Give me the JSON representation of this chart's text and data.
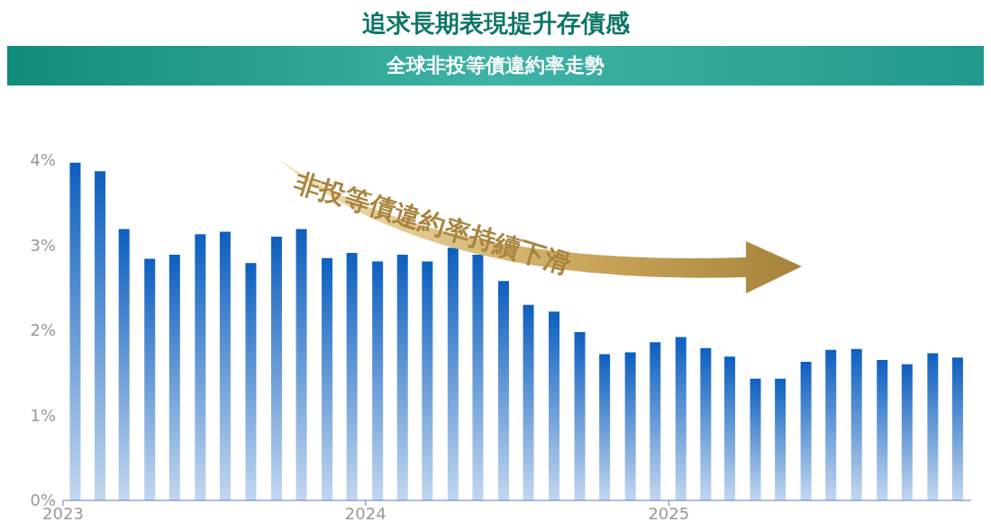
{
  "chart_data": {
    "type": "bar",
    "title": "追求長期表現提升存債感",
    "subtitle": "全球非投等債違約率走勢",
    "annotations": [
      "非投等債違約率持續下滑"
    ],
    "x": [
      "2023-01-16",
      "2023-02-15",
      "2023-03-16",
      "2023-04-16",
      "2023-05-16",
      "2023-06-16",
      "2023-07-16",
      "2023-08-16",
      "2023-09-16",
      "2023-10-16",
      "2023-11-16",
      "2023-12-16",
      "2024-01-16",
      "2024-02-15",
      "2024-03-16",
      "2024-04-16",
      "2024-05-16",
      "2024-06-16",
      "2024-07-16",
      "2024-08-16",
      "2024-09-16",
      "2024-10-16",
      "2024-11-16",
      "2024-12-16",
      "2025-01-16",
      "2025-02-15",
      "2025-03-16",
      "2025-04-16",
      "2025-05-16",
      "2025-06-16",
      "2025-07-16",
      "2025-08-16",
      "2025-09-16",
      "2025-10-16",
      "2025-11-16",
      "2025-12-16"
    ],
    "values": [
      3.97,
      3.87,
      3.19,
      2.84,
      2.89,
      3.13,
      3.16,
      2.79,
      3.1,
      3.19,
      2.85,
      2.91,
      2.81,
      2.89,
      2.81,
      2.97,
      2.89,
      2.58,
      2.3,
      2.22,
      1.98,
      1.72,
      1.74,
      1.86,
      1.92,
      1.79,
      1.69,
      1.43,
      1.43,
      1.63,
      1.77,
      1.78,
      1.65,
      1.6,
      1.73,
      1.68
    ],
    "color": "#0d5fbf",
    "xlim": [
      "2023",
      "2026"
    ],
    "xticks": [
      "2023",
      "2024",
      "2025"
    ],
    "ylim": [
      0,
      4
    ],
    "yticks": [
      {
        "value": 0,
        "label": "0%"
      },
      {
        "value": 1,
        "label": "1%"
      },
      {
        "value": 2,
        "label": "2%"
      },
      {
        "value": 3,
        "label": "3%"
      },
      {
        "value": 4,
        "label": "4%"
      }
    ]
  }
}
